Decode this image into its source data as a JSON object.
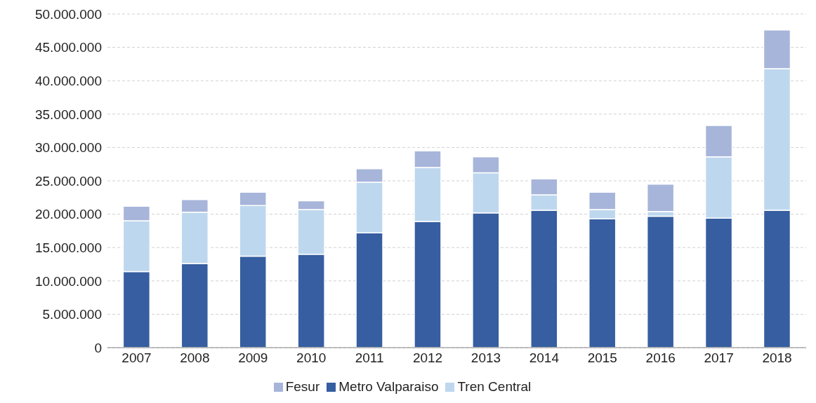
{
  "chart_data": {
    "type": "bar",
    "stacked": true,
    "categories": [
      "2007",
      "2008",
      "2009",
      "2010",
      "2011",
      "2012",
      "2013",
      "2014",
      "2015",
      "2016",
      "2017",
      "2018"
    ],
    "series": [
      {
        "name": "Metro Valparaiso",
        "color": "#365ea0",
        "values": [
          11400000,
          12600000,
          13700000,
          14000000,
          17200000,
          18900000,
          20200000,
          20600000,
          19300000,
          19700000,
          19400000,
          20600000
        ]
      },
      {
        "name": "Tren Central",
        "color": "#bdd7ee",
        "values": [
          7600000,
          7700000,
          7600000,
          6700000,
          7600000,
          8100000,
          6000000,
          2300000,
          1400000,
          700000,
          9200000,
          21200000
        ]
      },
      {
        "name": "Fesur",
        "color": "#a7b5da",
        "values": [
          2200000,
          1900000,
          2000000,
          1300000,
          2000000,
          2500000,
          2400000,
          2400000,
          2600000,
          4100000,
          4700000,
          5800000
        ]
      }
    ],
    "ylim": [
      0,
      50000000
    ],
    "yticks": [
      {
        "value": 0,
        "label": "0"
      },
      {
        "value": 5000000,
        "label": "5.000.000"
      },
      {
        "value": 10000000,
        "label": "10.000.000"
      },
      {
        "value": 15000000,
        "label": "15.000.000"
      },
      {
        "value": 20000000,
        "label": "20.000.000"
      },
      {
        "value": 25000000,
        "label": "25.000.000"
      },
      {
        "value": 30000000,
        "label": "30.000.000"
      },
      {
        "value": 35000000,
        "label": "35.000.000"
      },
      {
        "value": 40000000,
        "label": "40.000.000"
      },
      {
        "value": 45000000,
        "label": "45.000.000"
      },
      {
        "value": 50000000,
        "label": "50.000.000"
      }
    ],
    "grid": "y",
    "legend": "bottom"
  }
}
